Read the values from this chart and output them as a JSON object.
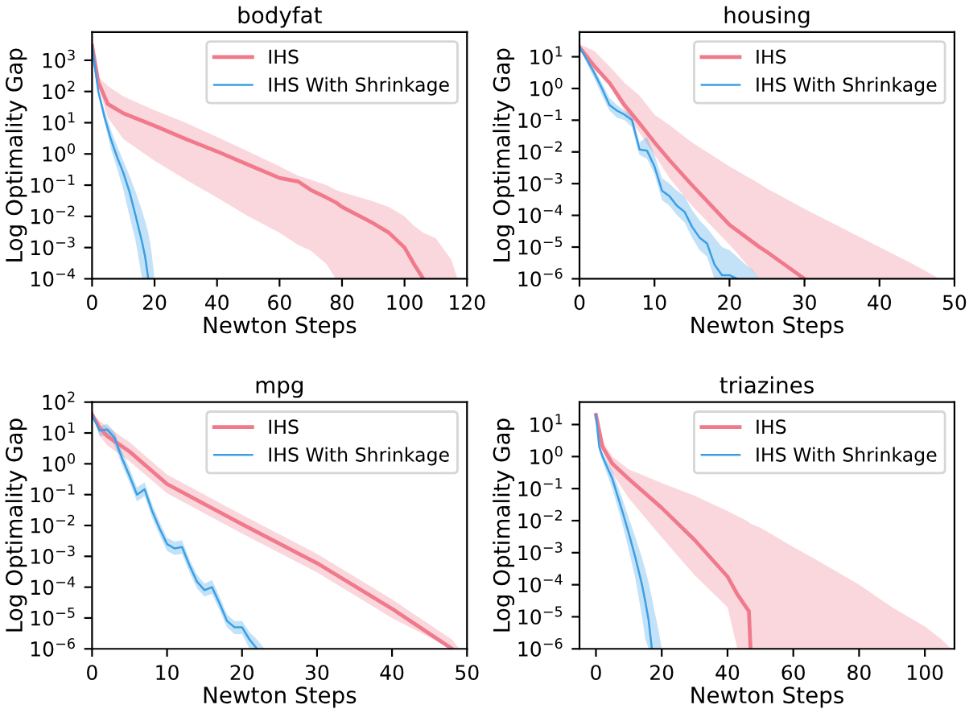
{
  "chart_data": [
    {
      "type": "line",
      "title": "bodyfat",
      "xlabel": "Newton Steps",
      "ylabel": "Log Optimality Gap",
      "log": "y",
      "grid": false,
      "legend": "upper right",
      "marker": "none",
      "line_style": "solid",
      "xlim": [
        0,
        120
      ],
      "xticks": [
        0,
        20,
        40,
        60,
        80,
        100,
        120
      ],
      "ylim": [
        0.0001,
        8000
      ],
      "yticks": [
        {
          "value": 0.0001,
          "label": "10$^{−4}$"
        },
        {
          "value": 0.001,
          "label": "10$^{−3}$"
        },
        {
          "value": 0.01,
          "label": "10$^{−2}$"
        },
        {
          "value": 0.1,
          "label": "10$^{−1}$"
        },
        {
          "value": 1,
          "label": "10$^{0}$"
        },
        {
          "value": 10,
          "label": "10$^{1}$"
        },
        {
          "value": 100,
          "label": "10$^{2}$"
        },
        {
          "value": 1000,
          "label": "10$^{3}$"
        }
      ],
      "series": [
        {
          "name": "IHS",
          "color": "#f07a8c",
          "x": [
            0,
            2,
            5,
            10,
            20,
            30,
            40,
            50,
            60,
            66,
            70,
            75,
            78,
            80,
            90,
            95,
            100,
            103,
            106,
            110,
            115,
            117
          ],
          "values": [
            3000,
            200,
            40,
            20,
            8,
            3,
            1.2,
            0.45,
            0.17,
            0.13,
            0.07,
            0.04,
            0.028,
            0.02,
            0.006,
            0.003,
            0.001,
            0.0003,
            0.0001,
            null,
            null,
            null
          ],
          "lower": [
            3000,
            150,
            15,
            3,
            0.6,
            0.15,
            0.04,
            0.01,
            0.003,
            0.0012,
            0.0008,
            0.0003,
            0.0001,
            0.0001,
            0.0001,
            0.0001,
            0.0001,
            0.0001,
            0.0001,
            0.0001,
            0.0001,
            0.0001
          ],
          "upper": [
            3000,
            300,
            150,
            70,
            25,
            10,
            3.5,
            1.2,
            0.4,
            0.2,
            0.15,
            0.1,
            0.07,
            0.06,
            0.03,
            0.02,
            0.01,
            0.005,
            0.003,
            0.002,
            0.0004,
            0.0001
          ]
        },
        {
          "name": "IHS With Shrinkage",
          "color": "#3a9fe6",
          "x": [
            0,
            2,
            4,
            6,
            8,
            10,
            12,
            14,
            16,
            17,
            18,
            19,
            20
          ],
          "values": [
            3000,
            100,
            15,
            3,
            0.8,
            0.25,
            0.06,
            0.01,
            0.0015,
            0.0005,
            0.0001,
            null,
            null
          ],
          "lower": [
            3000,
            80,
            10,
            1.5,
            0.35,
            0.07,
            0.01,
            0.0015,
            0.0001,
            0.0001,
            0.0001,
            0.0001,
            0.0001
          ],
          "upper": [
            3000,
            120,
            25,
            6,
            1.8,
            0.6,
            0.2,
            0.06,
            0.015,
            0.007,
            0.003,
            0.0008,
            0.0001
          ]
        }
      ]
    },
    {
      "type": "line",
      "title": "housing",
      "xlabel": "Newton Steps",
      "ylabel": "Log Optimality Gap",
      "log": "y",
      "grid": false,
      "legend": "upper right",
      "marker": "none",
      "line_style": "solid",
      "xlim": [
        0,
        50
      ],
      "xticks": [
        0,
        10,
        20,
        30,
        40,
        50
      ],
      "ylim": [
        1e-06,
        60
      ],
      "yticks": [
        {
          "value": 1e-06,
          "label": "10$^{−6}$"
        },
        {
          "value": 1e-05,
          "label": "10$^{−5}$"
        },
        {
          "value": 0.0001,
          "label": "10$^{−4}$"
        },
        {
          "value": 0.001,
          "label": "10$^{−3}$"
        },
        {
          "value": 0.01,
          "label": "10$^{−2}$"
        },
        {
          "value": 0.1,
          "label": "10$^{−1}$"
        },
        {
          "value": 1,
          "label": "10$^{0}$"
        },
        {
          "value": 10,
          "label": "10$^{1}$"
        }
      ],
      "series": [
        {
          "name": "IHS",
          "color": "#f07a8c",
          "x": [
            0,
            2,
            4,
            6,
            8,
            10,
            12,
            15,
            20,
            24,
            25,
            30,
            35,
            40,
            45,
            48
          ],
          "values": [
            20,
            5,
            1.5,
            0.3,
            0.08,
            0.02,
            0.0055,
            0.0009,
            5e-05,
            1e-05,
            7e-06,
            1e-06,
            null,
            null,
            null,
            null
          ],
          "lower": [
            20,
            4,
            1.2,
            0.2,
            0.04,
            0.008,
            0.0015,
            0.0002,
            1.2e-05,
            1e-06,
            1e-06,
            1e-06,
            1e-06,
            1e-06,
            1e-06,
            1e-06
          ],
          "upper": [
            25,
            15,
            5,
            1.5,
            0.6,
            0.15,
            0.07,
            0.02,
            0.0035,
            0.001,
            0.0007,
            0.00016,
            4e-05,
            1e-05,
            2.5e-06,
            1e-06
          ]
        },
        {
          "name": "IHS With Shrinkage",
          "color": "#3a9fe6",
          "x": [
            0,
            1,
            2,
            3,
            4,
            5,
            6,
            7,
            8,
            9,
            10,
            11,
            12,
            13,
            14,
            15,
            16,
            17,
            18,
            19,
            20,
            21,
            22,
            23,
            24
          ],
          "values": [
            20,
            8,
            3,
            1,
            0.3,
            0.2,
            0.15,
            0.1,
            0.012,
            0.011,
            0.0035,
            0.0006,
            0.0004,
            0.0002,
            0.00013,
            4.4e-05,
            2e-05,
            1.3e-05,
            2.8e-06,
            1.3e-06,
            1.3e-06,
            1e-06,
            null,
            null,
            null
          ],
          "lower": [
            20,
            6,
            2,
            0.6,
            0.2,
            0.12,
            0.1,
            0.06,
            0.008,
            0.006,
            0.002,
            0.0003,
            0.0002,
            0.0001,
            6e-05,
            2e-05,
            8e-06,
            5e-06,
            1e-06,
            1e-06,
            1e-06,
            1e-06,
            1e-06,
            1e-06,
            1e-06
          ],
          "upper": [
            20,
            10,
            4,
            1.5,
            0.5,
            0.3,
            0.2,
            0.15,
            0.02,
            0.03,
            0.008,
            0.0015,
            0.001,
            0.0006,
            0.0004,
            0.00015,
            7e-05,
            4e-05,
            2e-05,
            1e-05,
            8e-06,
            5e-06,
            3e-06,
            2e-06,
            1e-06
          ]
        }
      ]
    },
    {
      "type": "line",
      "title": "mpg",
      "xlabel": "Newton Steps",
      "ylabel": "Log Optimality Gap",
      "log": "y",
      "grid": false,
      "legend": "upper right",
      "marker": "none",
      "line_style": "solid",
      "xlim": [
        0,
        50
      ],
      "xticks": [
        0,
        10,
        20,
        30,
        40,
        50
      ],
      "ylim": [
        1e-06,
        100
      ],
      "yticks": [
        {
          "value": 1e-06,
          "label": "10$^{−6}$"
        },
        {
          "value": 1e-05,
          "label": "10$^{−5}$"
        },
        {
          "value": 0.0001,
          "label": "10$^{−4}$"
        },
        {
          "value": 0.001,
          "label": "10$^{−3}$"
        },
        {
          "value": 0.01,
          "label": "10$^{−2}$"
        },
        {
          "value": 0.1,
          "label": "10$^{−1}$"
        },
        {
          "value": 1,
          "label": "10$^{0}$"
        },
        {
          "value": 10,
          "label": "10$^{1}$"
        },
        {
          "value": 100,
          "label": "10$^{2}$"
        }
      ],
      "series": [
        {
          "name": "IHS",
          "color": "#f07a8c",
          "x": [
            0,
            1,
            2,
            5,
            10,
            20,
            30,
            40,
            48,
            49
          ],
          "values": [
            40,
            15,
            8,
            2.5,
            0.22,
            0.011,
            0.0006,
            2e-05,
            1e-06,
            null
          ],
          "lower": [
            40,
            8,
            4,
            1.2,
            0.11,
            0.0055,
            0.0003,
            1e-05,
            1e-06,
            1e-06
          ],
          "upper": [
            40,
            25,
            16,
            5,
            0.45,
            0.022,
            0.0012,
            4e-05,
            2e-06,
            1e-06
          ]
        },
        {
          "name": "IHS With Shrinkage",
          "color": "#3a9fe6",
          "x": [
            0,
            1,
            2,
            3,
            4,
            5,
            6,
            7,
            8,
            9,
            10,
            11,
            12,
            13,
            14,
            15,
            16,
            17,
            18,
            19,
            20,
            21,
            22,
            23
          ],
          "values": [
            40,
            12,
            13,
            7,
            1.5,
            0.4,
            0.1,
            0.15,
            0.03,
            0.008,
            0.0025,
            0.0018,
            0.002,
            0.0005,
            0.00015,
            8e-05,
            0.0001,
            3e-05,
            8e-06,
            5e-06,
            5e-06,
            2e-06,
            1e-06,
            null
          ],
          "lower": [
            40,
            8,
            8,
            4,
            0.9,
            0.25,
            0.06,
            0.09,
            0.018,
            0.005,
            0.0015,
            0.0011,
            0.0012,
            0.0003,
            9e-05,
            5e-05,
            6e-05,
            1.8e-05,
            5e-06,
            3e-06,
            3e-06,
            1e-06,
            1e-06,
            1e-06
          ],
          "upper": [
            40,
            16,
            20,
            11,
            2.5,
            0.7,
            0.17,
            0.25,
            0.05,
            0.013,
            0.004,
            0.003,
            0.0033,
            0.0008,
            0.00025,
            0.00013,
            0.00017,
            5e-05,
            1.3e-05,
            8e-06,
            8e-06,
            3.5e-06,
            2e-06,
            1e-06
          ]
        }
      ]
    },
    {
      "type": "line",
      "title": "triazines",
      "xlabel": "Newton Steps",
      "ylabel": "Log Optimality Gap",
      "log": "y",
      "grid": false,
      "legend": "upper right",
      "marker": "none",
      "line_style": "solid",
      "xlim": [
        -5,
        109
      ],
      "xticks": [
        0,
        20,
        40,
        60,
        80,
        100
      ],
      "ylim": [
        1e-06,
        50
      ],
      "yticks": [
        {
          "value": 1e-06,
          "label": "10$^{−6}$"
        },
        {
          "value": 1e-05,
          "label": "10$^{−5}$"
        },
        {
          "value": 0.0001,
          "label": "10$^{−4}$"
        },
        {
          "value": 0.001,
          "label": "10$^{−3}$"
        },
        {
          "value": 0.01,
          "label": "10$^{−2}$"
        },
        {
          "value": 0.1,
          "label": "10$^{−1}$"
        },
        {
          "value": 1,
          "label": "10$^{0}$"
        },
        {
          "value": 10,
          "label": "10$^{1}$"
        }
      ],
      "series": [
        {
          "name": "IHS",
          "color": "#f07a8c",
          "x": [
            0,
            2,
            5,
            10,
            20,
            30,
            40,
            43,
            45,
            46.5,
            47,
            50,
            60,
            70,
            80,
            90,
            100,
            105,
            108
          ],
          "values": [
            20,
            2,
            0.6,
            0.2,
            0.025,
            0.0025,
            0.00018,
            5e-05,
            2.5e-05,
            1.5e-05,
            1e-06,
            null,
            null,
            null,
            null,
            null,
            null,
            null,
            null
          ],
          "lower": [
            20,
            1.5,
            0.3,
            0.05,
            0.003,
            0.0002,
            2e-05,
            1e-06,
            1e-06,
            1e-06,
            1e-06,
            1e-06,
            1e-06,
            1e-06,
            1e-06,
            1e-06,
            1e-06,
            1e-06,
            1e-06
          ],
          "upper": [
            20,
            3,
            1,
            0.4,
            0.15,
            0.06,
            0.02,
            0.014,
            0.011,
            0.009,
            0.008,
            0.006,
            0.0015,
            0.0004,
            0.0001,
            2e-05,
            5e-06,
            2e-06,
            1e-06
          ]
        },
        {
          "name": "IHS With Shrinkage",
          "color": "#3a9fe6",
          "x": [
            0,
            1,
            2,
            5,
            8,
            10,
            12,
            14,
            15,
            16,
            17,
            18,
            19,
            20
          ],
          "values": [
            20,
            2,
            1,
            0.2,
            0.02,
            0.004,
            0.0007,
            0.0001,
            3e-05,
            8e-06,
            1e-06,
            null,
            null,
            null
          ],
          "lower": [
            20,
            1.5,
            0.7,
            0.1,
            0.008,
            0.0012,
            0.00015,
            1e-05,
            2e-06,
            1e-06,
            1e-06,
            1e-06,
            1e-06,
            1e-06
          ],
          "upper": [
            20,
            2.5,
            1.3,
            0.35,
            0.05,
            0.012,
            0.003,
            0.0007,
            0.0003,
            0.00012,
            4e-05,
            1.2e-05,
            4e-06,
            1e-06
          ]
        }
      ]
    }
  ]
}
